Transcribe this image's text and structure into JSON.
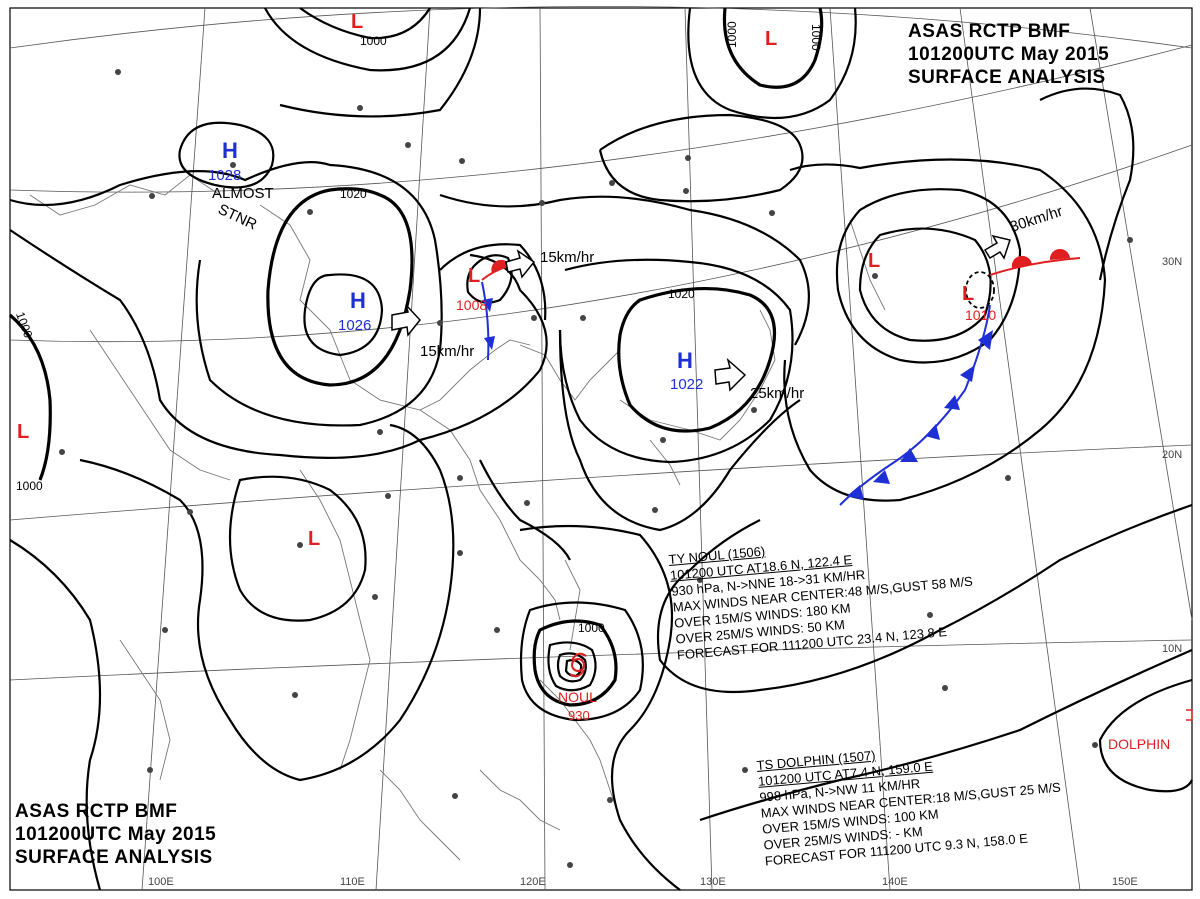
{
  "header_top": {
    "line1": "ASAS     RCTP    BMF",
    "line2": "101200UTC    May    2015",
    "line3": "SURFACE  ANALYSIS"
  },
  "header_bottom": {
    "line1": "ASAS     RCTP    BMF",
    "line2": "101200UTC     May     2015",
    "line3": "SURFACE  ANALYSIS"
  },
  "grid_labels": {
    "lon": [
      "100E",
      "110E",
      "120E",
      "130E",
      "140E",
      "150E"
    ],
    "lat": [
      "30N",
      "20N",
      "10N"
    ]
  },
  "isobar_labels": [
    "1000",
    "1000",
    "1000",
    "1020",
    "1020",
    "1000",
    "1000"
  ],
  "pressure_centers": [
    {
      "type": "H",
      "value": "1028",
      "color": "#1f2fd6"
    },
    {
      "type": "H",
      "value": "1026",
      "color": "#1f2fd6"
    },
    {
      "type": "H",
      "value": "1022",
      "color": "#1f2fd6"
    },
    {
      "type": "L",
      "value": "1008",
      "color": "#e02020"
    },
    {
      "type": "L",
      "value": "1010",
      "color": "#e02020"
    },
    {
      "type": "L",
      "value": "",
      "color": "#e02020"
    },
    {
      "type": "L",
      "value": "",
      "color": "#e02020"
    },
    {
      "type": "L",
      "value": "",
      "color": "#e02020"
    }
  ],
  "motion_labels": [
    "15km/hr",
    "15km/hr",
    "25km/hr",
    "30km/hr"
  ],
  "almost_stnr": [
    "ALMOST",
    "STNR"
  ],
  "typhoon_noul": {
    "name": "NOUL",
    "pressure": "930",
    "bulletin": [
      "TY  NOUL  (1506)",
      "101200  UTC  AT18.6 N, 122.4 E",
      "930 hPa, N->NNE  18->31 KM/HR",
      "MAX WINDS NEAR CENTER:48 M/S,GUST 58 M/S",
      "OVER 15M/S WINDS: 180 KM",
      "OVER 25M/S WINDS: 50 KM",
      "FORECAST FOR 111200 UTC 23.4 N, 123.8 E"
    ]
  },
  "ts_dolphin": {
    "name": "DOLPHIN",
    "bulletin": [
      "TS  DOLPHIN  (1507)",
      "101200 UTC  AT7.4 N, 159.0 E",
      "998 hPa, N->NW  11 KM/HR",
      "MAX WINDS NEAR CENTER:18 M/S,GUST 25 M/S",
      "OVER 15M/S WINDS: 100 KM",
      "OVER 25M/S WINDS: - KM",
      "FORECAST FOR 111200 UTC 9.3 N, 158.0 E"
    ]
  },
  "colors": {
    "high": "#1f2fd6",
    "low": "#e02020",
    "cold_front": "#1f2fd6",
    "warm_front": "#e02020"
  }
}
